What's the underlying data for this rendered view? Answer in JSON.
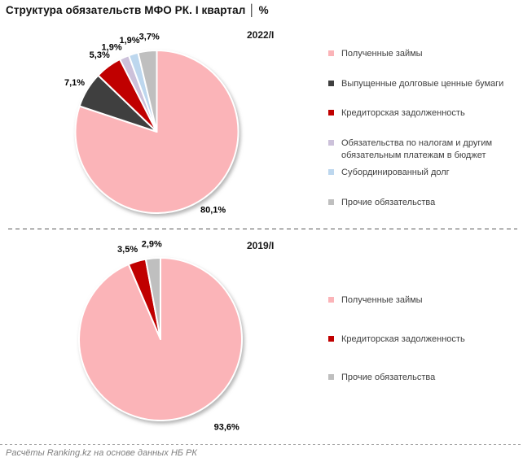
{
  "title": "Структура обязательств МФО РК. I квартал │ %",
  "footer": "Расчёты Ranking.kz на основе данных НБ РК",
  "chart_data": [
    {
      "type": "pie",
      "title": "2022/I",
      "unit": "%",
      "legend_position": "right",
      "start_angle_deg": 0,
      "direction": "clockwise",
      "labels": [
        "Полученные займы",
        "Выпущенные долговые ценные бумаги",
        "Кредиторская задолженность",
        "Обязательства по налогам и другим обязательным платежам в бюджет",
        "Субординированный долг",
        "Прочие обязательства"
      ],
      "values": [
        80.1,
        7.1,
        5.3,
        1.9,
        1.9,
        3.7
      ],
      "value_labels": [
        "80,1%",
        "7,1%",
        "5,3%",
        "1,9%",
        "1,9%",
        "3,7%"
      ],
      "colors": [
        "#FBB4B8",
        "#3F3F3F",
        "#C00000",
        "#CCC1DA",
        "#BDD7EE",
        "#BFBFBF"
      ],
      "label_angles": [
        null,
        null,
        null,
        332,
        343.5,
        355.5
      ],
      "label_radii": [
        null,
        null,
        null,
        null,
        null,
        null
      ]
    },
    {
      "type": "pie",
      "title": "2019/I",
      "unit": "%",
      "legend_position": "right",
      "start_angle_deg": 0,
      "direction": "clockwise",
      "labels": [
        "Полученные займы",
        "Кредиторская задолженность",
        "Прочие обязательства"
      ],
      "values": [
        93.6,
        3.5,
        2.9
      ],
      "value_labels": [
        "93,6%",
        "3,5%",
        "2,9%"
      ],
      "colors": [
        "#FBB4B8",
        "#C00000",
        "#BFBFBF"
      ],
      "label_angles": [
        143,
        340,
        null
      ],
      "label_radii": [
        135,
        null,
        null
      ]
    }
  ]
}
